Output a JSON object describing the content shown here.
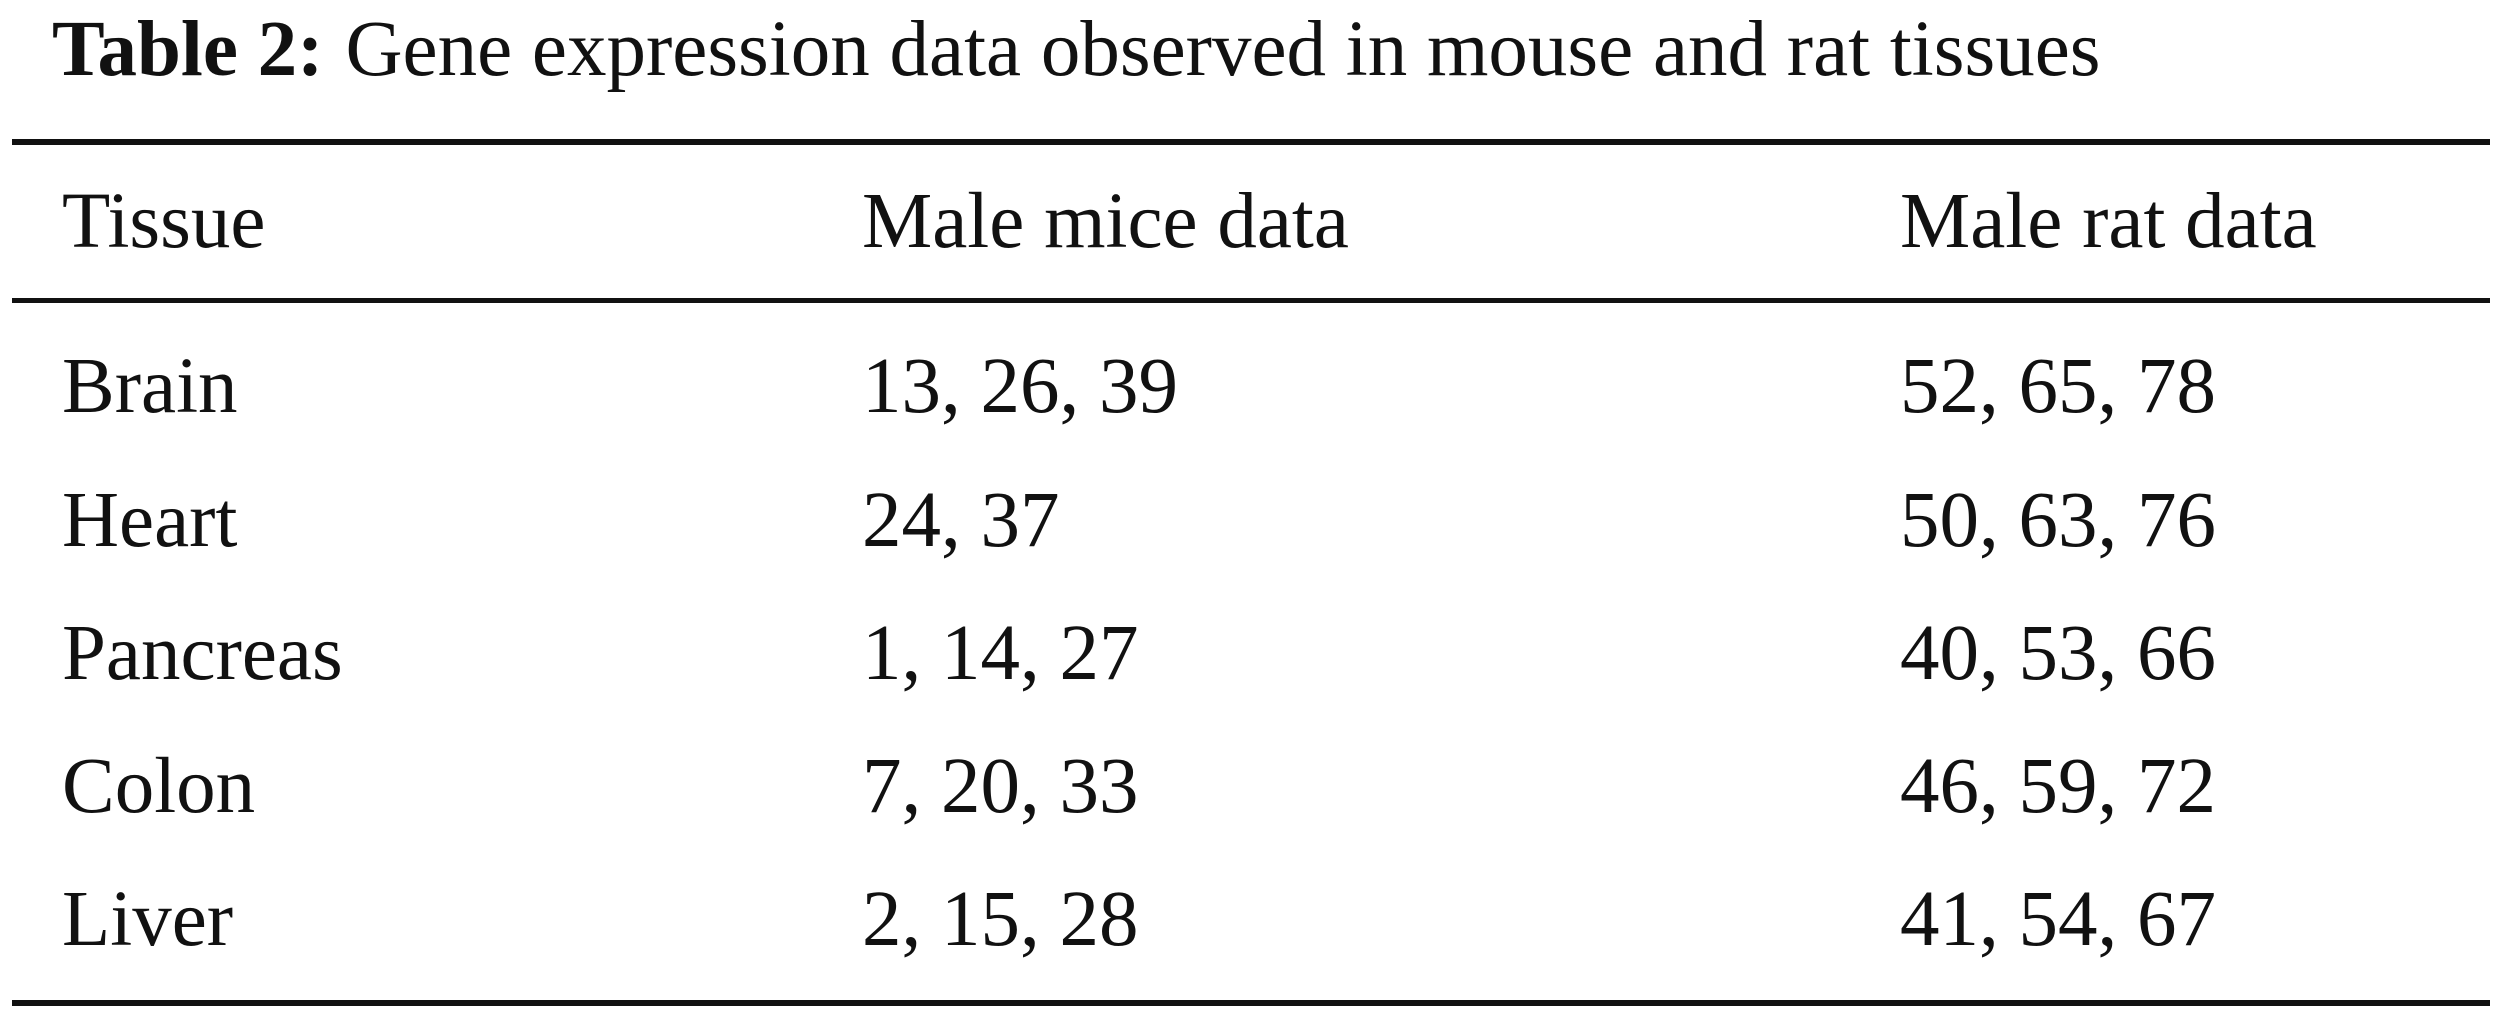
{
  "caption": {
    "label": "Table 2:",
    "text": "Gene expression data observed in mouse and rat tissues"
  },
  "table": {
    "headers": [
      "Tissue",
      "Male mice data",
      "Male rat data"
    ],
    "rows": [
      [
        "Brain",
        "13, 26, 39",
        "52, 65, 78"
      ],
      [
        "Heart",
        "24, 37",
        "50, 63, 76"
      ],
      [
        "Pancreas",
        "1, 14, 27",
        "40, 53, 66"
      ],
      [
        "Colon",
        "7, 20, 33",
        "46, 59, 72"
      ],
      [
        "Liver",
        "2, 15, 28",
        "41, 54, 67"
      ]
    ]
  }
}
